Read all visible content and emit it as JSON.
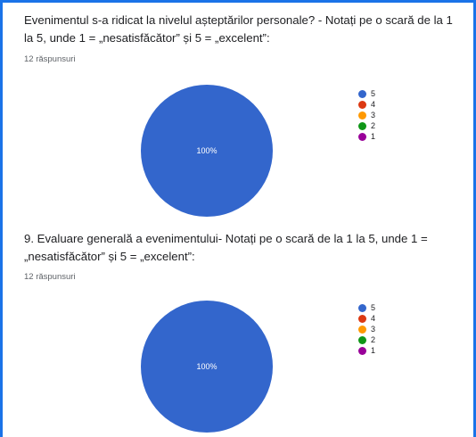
{
  "questions": [
    {
      "title": "Evenimentul s-a ridicat la nivelul așteptărilor personale? - Notați pe o scară de la 1 la 5, unde 1 = „nesatisfăcător” și 5 = „excelent”:",
      "responses": "12 răspunsuri"
    },
    {
      "title": "9. Evaluare generală a evenimentului- Notați pe o scară de la 1 la 5, unde 1 = „nesatisfăcător” și 5 = „excelent”:",
      "responses": "12 răspunsuri"
    }
  ],
  "chart_data": [
    {
      "type": "pie",
      "categories": [
        "5",
        "4",
        "3",
        "2",
        "1"
      ],
      "values": [
        100,
        0,
        0,
        0,
        0
      ],
      "colors": [
        "#3366cc",
        "#dc3912",
        "#ff9900",
        "#109618",
        "#990099"
      ],
      "slice_label": "100%",
      "legend_position": "right"
    },
    {
      "type": "pie",
      "categories": [
        "5",
        "4",
        "3",
        "2",
        "1"
      ],
      "values": [
        100,
        0,
        0,
        0,
        0
      ],
      "colors": [
        "#3366cc",
        "#dc3912",
        "#ff9900",
        "#109618",
        "#990099"
      ],
      "slice_label": "100%",
      "legend_position": "right"
    }
  ]
}
